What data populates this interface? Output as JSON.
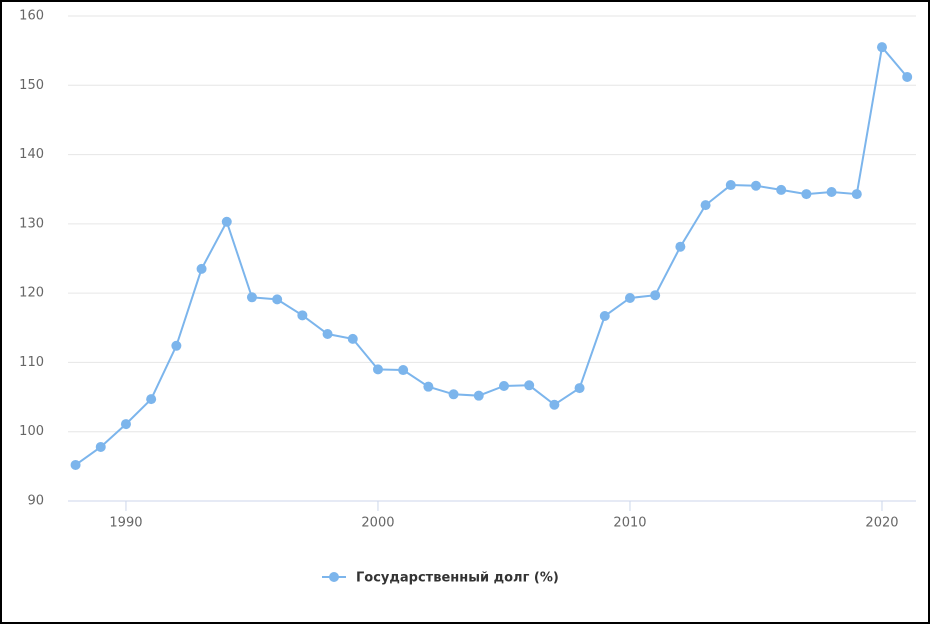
{
  "chart_data": {
    "type": "line",
    "x": [
      1988,
      1989,
      1990,
      1991,
      1992,
      1993,
      1994,
      1995,
      1996,
      1997,
      1998,
      1999,
      2000,
      2001,
      2002,
      2003,
      2004,
      2005,
      2006,
      2007,
      2008,
      2009,
      2010,
      2011,
      2012,
      2013,
      2014,
      2015,
      2016,
      2017,
      2018,
      2019,
      2020,
      2021
    ],
    "series": [
      {
        "name": "Государственный долг (%)",
        "color": "#7cb5ec",
        "values": [
          95.2,
          97.8,
          101.1,
          104.7,
          112.4,
          123.5,
          130.3,
          119.4,
          119.1,
          116.8,
          114.1,
          113.4,
          109.0,
          108.9,
          106.5,
          105.4,
          105.2,
          106.6,
          106.7,
          103.9,
          106.3,
          116.7,
          119.3,
          119.7,
          126.7,
          132.7,
          135.6,
          135.5,
          134.9,
          134.3,
          134.6,
          134.3,
          155.5,
          151.2
        ]
      }
    ],
    "xlim": [
      1987.7,
      2021.35
    ],
    "ylim": [
      90,
      160
    ],
    "xticks": [
      1990,
      2000,
      2010,
      2020
    ],
    "yticks": [
      90,
      100,
      110,
      120,
      130,
      140,
      150,
      160
    ],
    "grid": true
  }
}
